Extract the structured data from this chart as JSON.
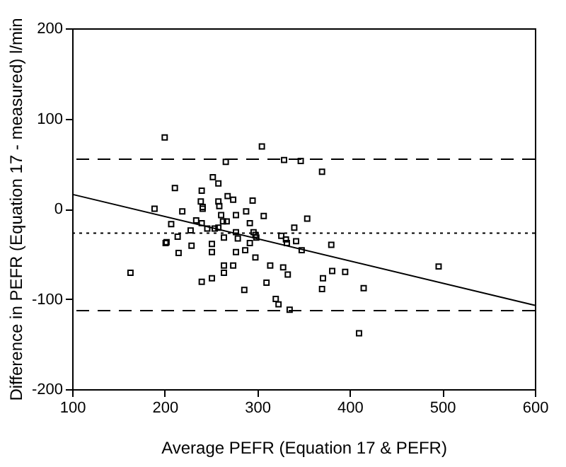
{
  "chart_data": {
    "type": "scatter",
    "xlabel": "Average PEFR (Equation 17 & PEFR)",
    "ylabel": "Difference in PEFR (Equation 17 - measured) l/min",
    "xlim": [
      100,
      600
    ],
    "ylim": [
      -200,
      200
    ],
    "xticks": [
      100,
      200,
      300,
      400,
      500,
      600
    ],
    "yticks": [
      -200,
      -100,
      0,
      100,
      200
    ],
    "grid": false,
    "series": [
      {
        "color": "#000000",
        "marker": "square",
        "x": [
          200,
          305,
          266,
          329,
          347,
          370,
          252,
          258,
          211,
          240,
          268,
          274,
          295,
          239,
          258,
          241,
          241,
          259,
          189,
          219,
          288,
          261,
          277,
          307,
          354,
          234,
          263,
          267,
          292,
          207,
          240,
          246,
          340,
          258,
          254,
          228,
          277,
          296,
          298,
          326,
          264,
          279,
          299,
          214,
          331,
          342,
          332,
          292,
          201,
          202,
          229,
          251,
          380,
          348,
          287,
          277,
          251,
          215,
          298,
          264,
          274,
          314,
          328,
          496,
          264,
          163,
          381,
          395,
          333,
          371,
          251,
          240,
          310,
          370,
          415,
          286,
          320,
          323,
          335,
          410
        ],
        "values": [
          79,
          69,
          52,
          54,
          53,
          41,
          35,
          28,
          23,
          20,
          14,
          10,
          9,
          8,
          8,
          2,
          0,
          3,
          0,
          -3,
          -3,
          -7,
          -7,
          -8,
          -11,
          -13,
          -14,
          -14,
          -16,
          -17,
          -16,
          -22,
          -21,
          -21,
          -22,
          -24,
          -26,
          -26,
          -29,
          -30,
          -32,
          -33,
          -32,
          -31,
          -34,
          -36,
          -38,
          -38,
          -38,
          -37,
          -41,
          -39,
          -40,
          -46,
          -46,
          -48,
          -48,
          -49,
          -54,
          -63,
          -63,
          -63,
          -65,
          -64,
          -71,
          -71,
          -69,
          -70,
          -73,
          -77,
          -77,
          -81,
          -82,
          -89,
          -88,
          -90,
          -100,
          -106,
          -112,
          -138
        ]
      },
      {
        "type": "line",
        "color": "#000000",
        "line_style": "solid",
        "x": [
          100,
          600
        ],
        "values": [
          16,
          -107
        ]
      }
    ],
    "ref_lines": [
      {
        "axis": "y",
        "value": 55,
        "line_style": "dashed",
        "color": "#000000"
      },
      {
        "axis": "y",
        "value": -27,
        "line_style": "dotted",
        "color": "#000000"
      },
      {
        "axis": "y",
        "value": -113,
        "line_style": "dashed",
        "color": "#000000"
      }
    ]
  }
}
